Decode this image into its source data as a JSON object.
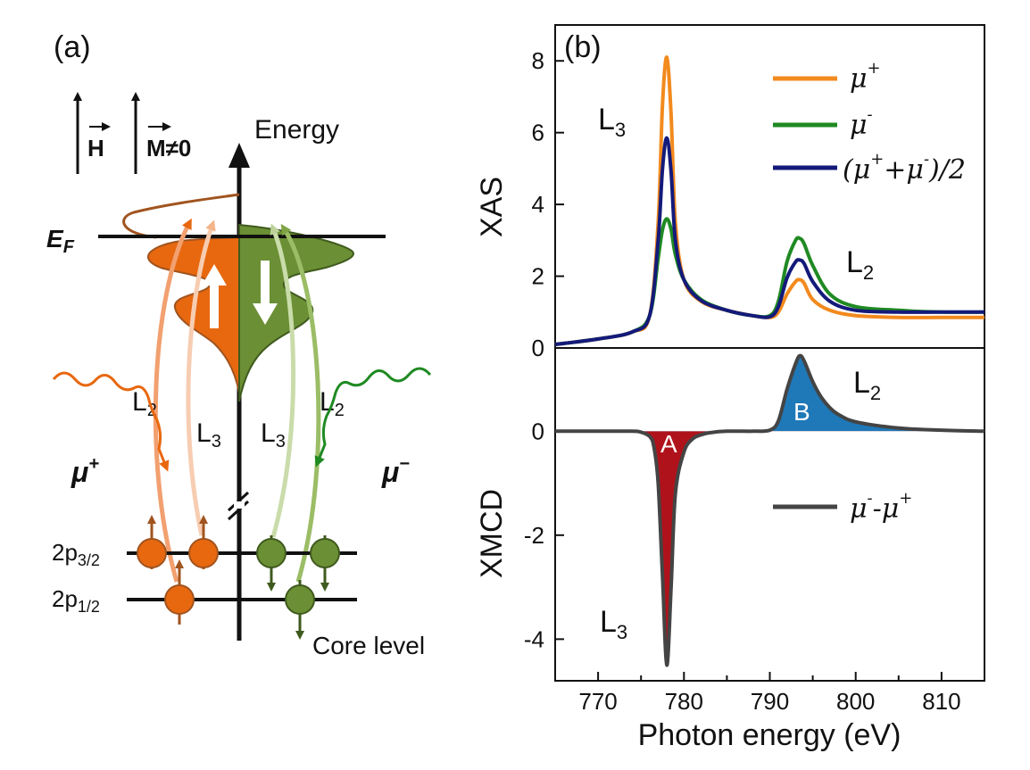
{
  "panel_a": {
    "label": "(a)",
    "energy_label": "Energy",
    "h_label": "H",
    "m_label": "M≠0",
    "ef_label": "E",
    "ef_sub": "F",
    "l2_left": "L",
    "l2_left_sub": "2",
    "l3_left": "L",
    "l3_left_sub": "3",
    "l3_right": "L",
    "l3_right_sub": "3",
    "l2_right": "L",
    "l2_right_sub": "2",
    "mu_plus": "μ",
    "mu_plus_sup": "+",
    "mu_minus": "μ",
    "mu_minus_sup": "−",
    "p32_label": "2p",
    "p32_sub": "3/2",
    "p12_label": "2p",
    "p12_sub": "1/2",
    "core_level": "Core level",
    "colors": {
      "orange": "#e8680f",
      "green": "#5d7f2c",
      "brown": "#a0541f"
    }
  },
  "panel_b": {
    "label": "(b)",
    "xlabel": "Photon energy (eV)",
    "xticks": [
      "770",
      "780",
      "790",
      "800",
      "810"
    ],
    "xas": {
      "ylabel": "XAS",
      "yticks": [
        "0",
        "2",
        "4",
        "6",
        "8"
      ],
      "l3": "L",
      "l3_sub": "3",
      "l2": "L",
      "l2_sub": "2",
      "legend": [
        {
          "name": "μ",
          "sup": "+",
          "color": "#f28a1e"
        },
        {
          "name": "μ",
          "sup": "-",
          "color": "#1f8a22"
        },
        {
          "name": "(μ",
          "sup": "+",
          "mid": "+μ",
          "sup2": "-",
          "tail": ")/2",
          "color": "#141a7a"
        }
      ]
    },
    "xmcd": {
      "ylabel": "XMCD",
      "yticks": [
        "0",
        "-2",
        "-4"
      ],
      "l2": "L",
      "l2_sub": "2",
      "l3": "L",
      "l3_sub": "3",
      "peak_a": "A",
      "peak_b": "B",
      "legend_name": "μ",
      "legend_sup1": "-",
      "legend_mid": "-μ",
      "legend_sup2": "+",
      "colors": {
        "line": "#444444",
        "a_fill": "#b0121b",
        "b_fill": "#1f78b8"
      }
    }
  },
  "chart_data": [
    {
      "type": "line",
      "title": "",
      "xlabel": "Photon energy (eV)",
      "ylabel": "XAS",
      "xlim": [
        765,
        815
      ],
      "ylim": [
        0,
        9
      ],
      "series": [
        {
          "name": "μ+",
          "x": [
            765,
            770,
            774,
            776,
            777,
            777.5,
            778,
            778.5,
            779,
            780,
            782,
            785,
            788,
            790,
            791,
            792,
            793,
            793.5,
            794,
            795,
            797,
            800,
            805,
            810,
            815
          ],
          "y": [
            0.1,
            0.25,
            0.45,
            0.9,
            3.5,
            6.8,
            8.1,
            6.5,
            3.5,
            1.9,
            1.3,
            1.05,
            0.9,
            0.85,
            1.0,
            1.5,
            1.85,
            1.9,
            1.8,
            1.35,
            1.05,
            0.9,
            0.85,
            0.85,
            0.85
          ]
        },
        {
          "name": "μ-",
          "x": [
            765,
            770,
            774,
            776,
            777,
            777.5,
            778,
            778.5,
            779,
            780,
            782,
            785,
            788,
            790,
            791,
            792,
            793,
            793.5,
            794,
            795,
            797,
            800,
            805,
            810,
            815
          ],
          "y": [
            0.1,
            0.25,
            0.45,
            0.9,
            2.5,
            3.3,
            3.6,
            3.3,
            2.6,
            1.9,
            1.35,
            1.05,
            0.9,
            0.9,
            1.3,
            2.4,
            3.0,
            3.05,
            2.9,
            2.3,
            1.5,
            1.15,
            1.05,
            1.0,
            1.0
          ]
        },
        {
          "name": "(μ++μ-)/2",
          "x": [
            765,
            770,
            774,
            776,
            777,
            777.5,
            778,
            778.5,
            779,
            780,
            782,
            785,
            788,
            790,
            791,
            792,
            793,
            793.5,
            794,
            795,
            797,
            800,
            805,
            810,
            815
          ],
          "y": [
            0.1,
            0.25,
            0.45,
            0.9,
            3.0,
            5.0,
            5.85,
            4.9,
            3.0,
            1.9,
            1.32,
            1.05,
            0.9,
            0.87,
            1.15,
            1.95,
            2.4,
            2.45,
            2.35,
            1.85,
            1.3,
            1.05,
            1.0,
            1.0,
            1.0
          ]
        }
      ]
    },
    {
      "type": "area",
      "title": "",
      "xlabel": "Photon energy (eV)",
      "ylabel": "XMCD",
      "xlim": [
        765,
        815
      ],
      "ylim": [
        -4.8,
        1.6
      ],
      "series": [
        {
          "name": "μ--μ+",
          "x": [
            765,
            770,
            774,
            775,
            776,
            776.5,
            777,
            777.5,
            778,
            778.5,
            779,
            780,
            781,
            782,
            783,
            785,
            788,
            790,
            791,
            792,
            793,
            793.5,
            794,
            795,
            796,
            797,
            798,
            800,
            805,
            810,
            815
          ],
          "y": [
            0,
            0,
            0,
            -0.02,
            -0.1,
            -0.3,
            -1.0,
            -2.8,
            -4.5,
            -3.0,
            -1.2,
            -0.4,
            -0.15,
            -0.07,
            -0.03,
            0,
            0,
            0.02,
            0.2,
            0.8,
            1.3,
            1.45,
            1.35,
            0.95,
            0.65,
            0.45,
            0.32,
            0.18,
            0.06,
            0.02,
            0
          ]
        }
      ]
    }
  ]
}
